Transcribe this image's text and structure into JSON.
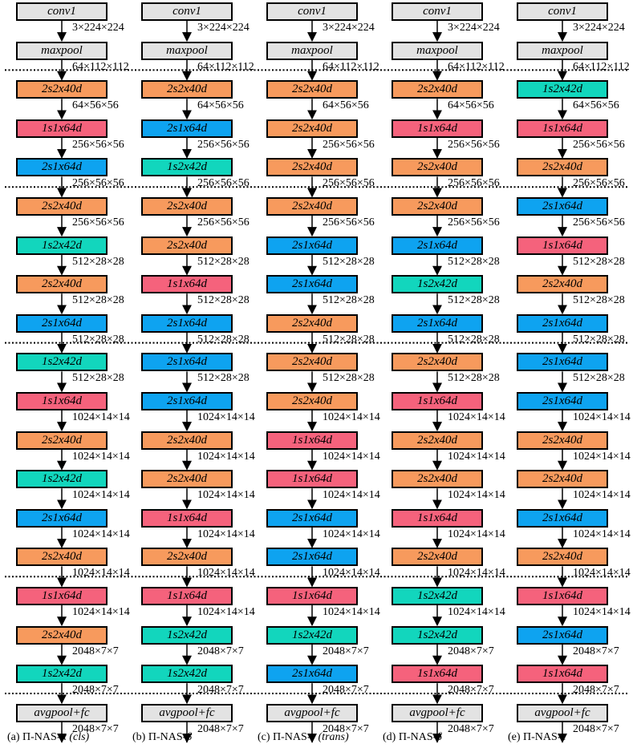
{
  "colors": {
    "gray": "#e3e3e3",
    "orange": "#f79a5d",
    "pink": "#f5627c",
    "blue": "#0ea3f0",
    "teal": "#12d6bd"
  },
  "block_colors": {
    "conv1": "gray",
    "maxpool": "gray",
    "avgpool+fc": "gray",
    "2s2x40d": "orange",
    "1s1x64d": "pink",
    "2s1x64d": "blue",
    "1s2x42d": "teal"
  },
  "dims": [
    "3×224×224",
    "64×112×112",
    "64×56×56",
    "256×56×56",
    "256×56×56",
    "256×56×56",
    "512×28×28",
    "512×28×28",
    "512×28×28",
    "512×28×28",
    "1024×14×14",
    "1024×14×14",
    "1024×14×14",
    "1024×14×14",
    "1024×14×14",
    "1024×14×14",
    "2048×7×7",
    "2048×7×7",
    "2048×7×7"
  ],
  "stage_boundaries_after_block": [
    1,
    4,
    8,
    14,
    17
  ],
  "columns": [
    {
      "caption_prefix": "(a) Π-NAS-",
      "caption_greek": "α",
      "caption_suffix": " (cls)",
      "blocks": [
        "conv1",
        "maxpool",
        "2s2x40d",
        "1s1x64d",
        "2s1x64d",
        "2s2x40d",
        "1s2x42d",
        "2s2x40d",
        "2s1x64d",
        "1s2x42d",
        "1s1x64d",
        "2s2x40d",
        "1s2x42d",
        "2s1x64d",
        "2s2x40d",
        "1s1x64d",
        "2s2x40d",
        "1s2x42d",
        "avgpool+fc"
      ]
    },
    {
      "caption_prefix": "(b) Π-NAS-",
      "caption_greek": "β",
      "caption_suffix": "",
      "blocks": [
        "conv1",
        "maxpool",
        "2s2x40d",
        "2s1x64d",
        "1s2x42d",
        "2s2x40d",
        "2s2x40d",
        "1s1x64d",
        "2s1x64d",
        "2s1x64d",
        "2s1x64d",
        "2s2x40d",
        "2s2x40d",
        "1s1x64d",
        "2s2x40d",
        "1s1x64d",
        "1s2x42d",
        "1s2x42d",
        "avgpool+fc"
      ]
    },
    {
      "caption_prefix": "(c) Π-NAS-",
      "caption_greek": "γ",
      "caption_suffix": " (trans)",
      "blocks": [
        "conv1",
        "maxpool",
        "2s2x40d",
        "2s2x40d",
        "2s2x40d",
        "2s2x40d",
        "2s1x64d",
        "2s1x64d",
        "2s2x40d",
        "2s2x40d",
        "2s2x40d",
        "1s1x64d",
        "1s1x64d",
        "2s1x64d",
        "2s1x64d",
        "1s1x64d",
        "1s2x42d",
        "2s1x64d",
        "avgpool+fc"
      ]
    },
    {
      "caption_prefix": "(d) Π-NAS-",
      "caption_greek": "δ",
      "caption_suffix": "",
      "blocks": [
        "conv1",
        "maxpool",
        "2s2x40d",
        "1s1x64d",
        "2s2x40d",
        "2s2x40d",
        "2s1x64d",
        "1s2x42d",
        "2s1x64d",
        "2s2x40d",
        "1s1x64d",
        "2s2x40d",
        "2s2x40d",
        "1s1x64d",
        "2s2x40d",
        "1s2x42d",
        "1s2x42d",
        "1s1x64d",
        "avgpool+fc"
      ]
    },
    {
      "caption_prefix": "(e) Π-NAS-",
      "caption_greek": "ϵ",
      "caption_suffix": "",
      "blocks": [
        "conv1",
        "maxpool",
        "1s2x42d",
        "1s1x64d",
        "2s2x40d",
        "2s1x64d",
        "1s1x64d",
        "2s2x40d",
        "2s1x64d",
        "2s1x64d",
        "2s1x64d",
        "2s2x40d",
        "2s2x40d",
        "2s1x64d",
        "2s2x40d",
        "1s1x64d",
        "2s1x64d",
        "1s1x64d",
        "avgpool+fc"
      ]
    }
  ]
}
